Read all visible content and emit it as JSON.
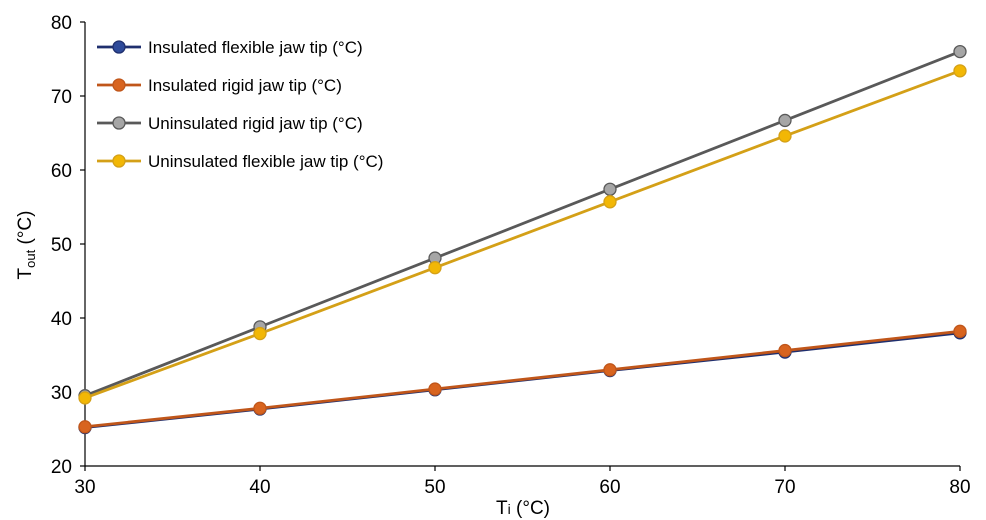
{
  "chart_data": {
    "type": "line",
    "title": "",
    "xlabel": {
      "main": "T",
      "sub": "i",
      "unit": " (°C)"
    },
    "ylabel": {
      "main": "T",
      "sub": "out",
      "unit": " (°C)"
    },
    "x": [
      30,
      40,
      50,
      60,
      70,
      80
    ],
    "xlim": [
      30,
      80
    ],
    "ylim": [
      20,
      80
    ],
    "xticks": [
      "30",
      "40",
      "50",
      "60",
      "70",
      "80"
    ],
    "yticks": [
      "20",
      "30",
      "40",
      "50",
      "60",
      "70",
      "80"
    ],
    "grid": false,
    "legend_position": "top-left",
    "series": [
      {
        "name": "Insulated flexible jaw tip (°C)",
        "color": "#1f2f6e",
        "marker_color": "#2e4a9a",
        "values": [
          25.2,
          27.7,
          30.3,
          32.9,
          35.4,
          38.0
        ]
      },
      {
        "name": "Insulated rigid jaw tip (°C)",
        "color": "#c0561a",
        "marker_color": "#d8641f",
        "values": [
          25.3,
          27.8,
          30.4,
          33.0,
          35.6,
          38.2
        ]
      },
      {
        "name": "Uninsulated rigid jaw tip (°C)",
        "color": "#595959",
        "marker_color": "#a6a6a6",
        "values": [
          29.5,
          38.8,
          48.1,
          57.4,
          66.7,
          76.0
        ]
      },
      {
        "name": "Uninsulated flexible jaw tip (°C)",
        "color": "#d4a017",
        "marker_color": "#f2b705",
        "values": [
          29.2,
          37.9,
          46.8,
          55.7,
          64.6,
          73.4
        ]
      }
    ]
  }
}
